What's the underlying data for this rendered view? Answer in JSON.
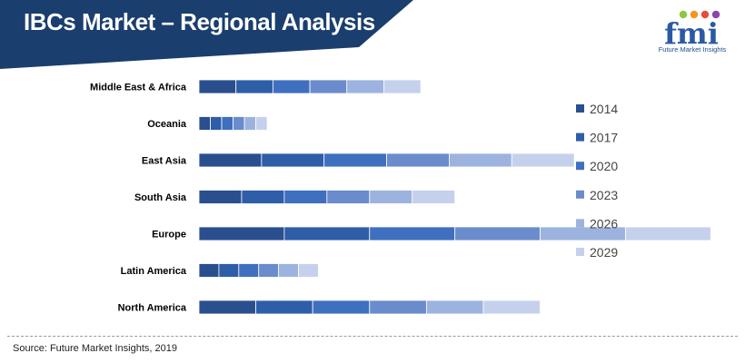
{
  "title": "IBCs Market – Regional Analysis",
  "brand": {
    "logo_letters": "fmi",
    "name": "Future Market Insights"
  },
  "source": "Source: Future Market Insights, 2019",
  "colors": {
    "banner": "#1a3e6e",
    "series": [
      "#2a4f8f",
      "#2e5ea8",
      "#3f6fbf",
      "#6a8ccc",
      "#9db3df",
      "#c5d1ec"
    ],
    "logo_dots": [
      "#8dc63f",
      "#f7941d",
      "#e84c3d",
      "#8e44ad"
    ]
  },
  "chart_data": {
    "type": "bar",
    "orientation": "horizontal",
    "stacked": true,
    "categories": [
      "Middle East & Africa",
      "Oceania",
      "East Asia",
      "South Asia",
      "Europe",
      "Latin America",
      "North America"
    ],
    "series": [
      {
        "name": "2014",
        "values": [
          13,
          4,
          22,
          15,
          30,
          7,
          20
        ]
      },
      {
        "name": "2017",
        "values": [
          13,
          4,
          22,
          15,
          30,
          7,
          20
        ]
      },
      {
        "name": "2020",
        "values": [
          13,
          4,
          22,
          15,
          30,
          7,
          20
        ]
      },
      {
        "name": "2023",
        "values": [
          13,
          4,
          22,
          15,
          30,
          7,
          20
        ]
      },
      {
        "name": "2026",
        "values": [
          13,
          4,
          22,
          15,
          30,
          7,
          20
        ]
      },
      {
        "name": "2029",
        "values": [
          13,
          4,
          22,
          15,
          30,
          7,
          20
        ]
      }
    ],
    "legend_position": "right",
    "grid": false,
    "axis_labels_shown": false,
    "xlim": [
      0,
      185
    ]
  }
}
